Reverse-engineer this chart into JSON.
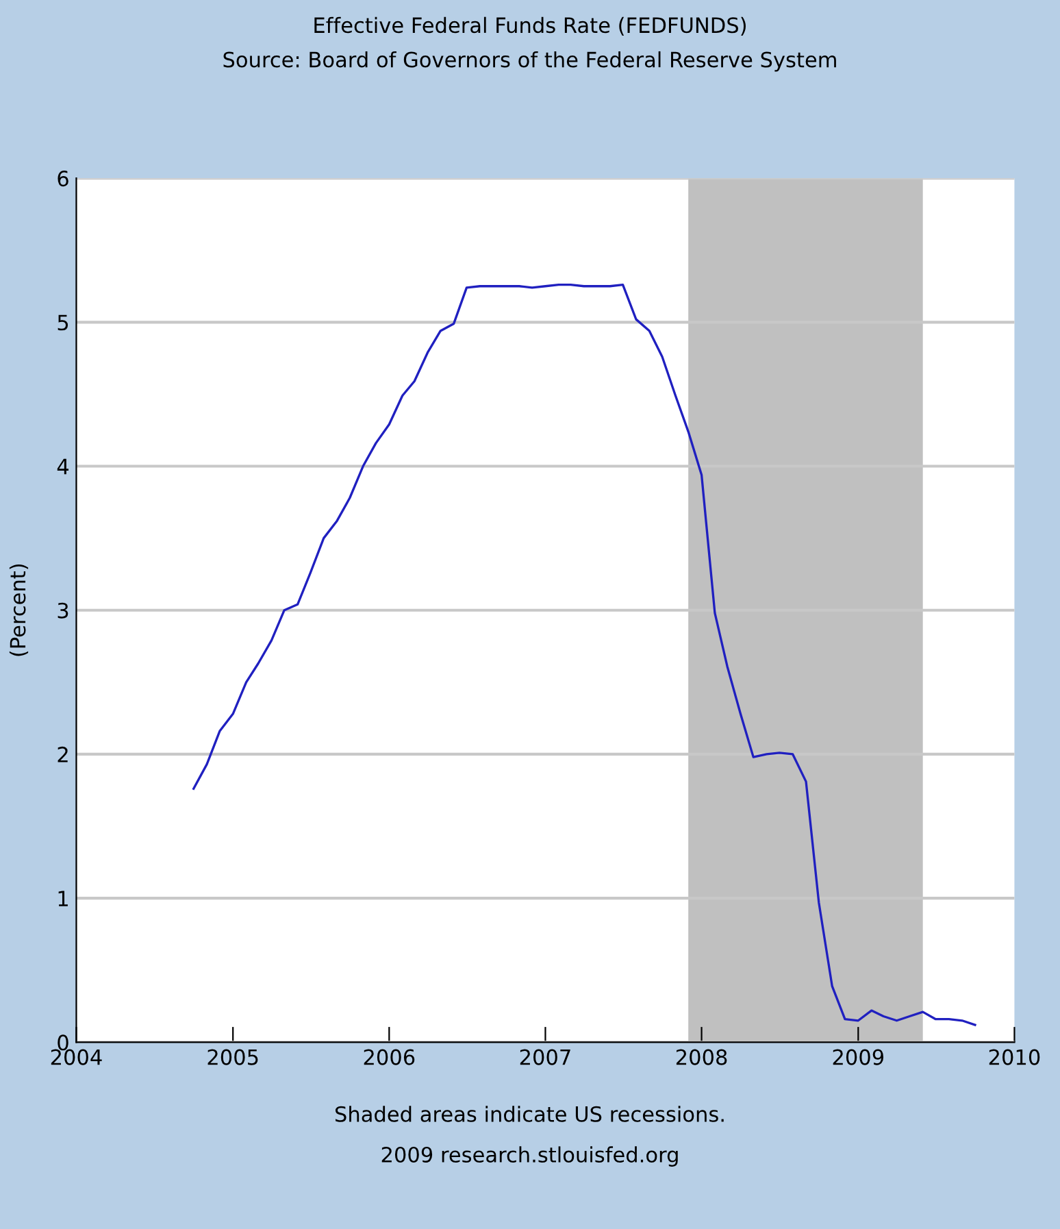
{
  "chart_data": {
    "type": "line",
    "title": "Effective Federal Funds Rate (FEDFUNDS)",
    "subtitle": "Source: Board of Governors of the Federal Reserve System",
    "ylabel": "(Percent)",
    "x": [
      "2004-10",
      "2004-11",
      "2004-12",
      "2005-01",
      "2005-02",
      "2005-03",
      "2005-04",
      "2005-05",
      "2005-06",
      "2005-07",
      "2005-08",
      "2005-09",
      "2005-10",
      "2005-11",
      "2005-12",
      "2006-01",
      "2006-02",
      "2006-03",
      "2006-04",
      "2006-05",
      "2006-06",
      "2006-07",
      "2006-08",
      "2006-09",
      "2006-10",
      "2006-11",
      "2006-12",
      "2007-01",
      "2007-02",
      "2007-03",
      "2007-04",
      "2007-05",
      "2007-06",
      "2007-07",
      "2007-08",
      "2007-09",
      "2007-10",
      "2007-11",
      "2007-12",
      "2008-01",
      "2008-02",
      "2008-03",
      "2008-04",
      "2008-05",
      "2008-06",
      "2008-07",
      "2008-08",
      "2008-09",
      "2008-10",
      "2008-11",
      "2008-12",
      "2009-01",
      "2009-02",
      "2009-03",
      "2009-04",
      "2009-05",
      "2009-06",
      "2009-07",
      "2009-08",
      "2009-09",
      "2009-10"
    ],
    "series": [
      {
        "color": "#2020c0",
        "values": [
          1.76,
          1.93,
          2.16,
          2.28,
          2.5,
          2.63,
          2.79,
          3.0,
          3.04,
          3.26,
          3.5,
          3.62,
          3.78,
          4.0,
          4.16,
          4.29,
          4.49,
          4.59,
          4.79,
          4.94,
          4.99,
          5.24,
          5.25,
          5.25,
          5.25,
          5.25,
          5.24,
          5.25,
          5.26,
          5.26,
          5.25,
          5.25,
          5.25,
          5.26,
          5.02,
          4.94,
          4.76,
          4.49,
          4.24,
          3.94,
          2.98,
          2.61,
          2.28,
          1.98,
          2.0,
          2.01,
          2.0,
          1.81,
          0.97,
          0.39,
          0.16,
          0.15,
          0.22,
          0.18,
          0.15,
          0.18,
          0.21,
          0.16,
          0.16,
          0.15,
          0.12
        ]
      }
    ],
    "xlim": [
      "2004",
      "2010"
    ],
    "xticks": [
      {
        "value": "2004",
        "label": "2004"
      },
      {
        "value": "2005",
        "label": "2005"
      },
      {
        "value": "2006",
        "label": "2006"
      },
      {
        "value": "2007",
        "label": "2007"
      },
      {
        "value": "2008",
        "label": "2008"
      },
      {
        "value": "2009",
        "label": "2009"
      },
      {
        "value": "2010",
        "label": "2010"
      }
    ],
    "ylim": [
      0,
      6
    ],
    "yticks": [
      0,
      1,
      2,
      3,
      4,
      5,
      6
    ],
    "grid": "y",
    "bands": [
      {
        "axis": "x",
        "from": "2007-12",
        "to": "2009-06",
        "color": "#c0c0c0"
      }
    ],
    "annotations": [
      "Shaded areas indicate US recessions.",
      "2009 research.stlouisfed.org"
    ]
  }
}
